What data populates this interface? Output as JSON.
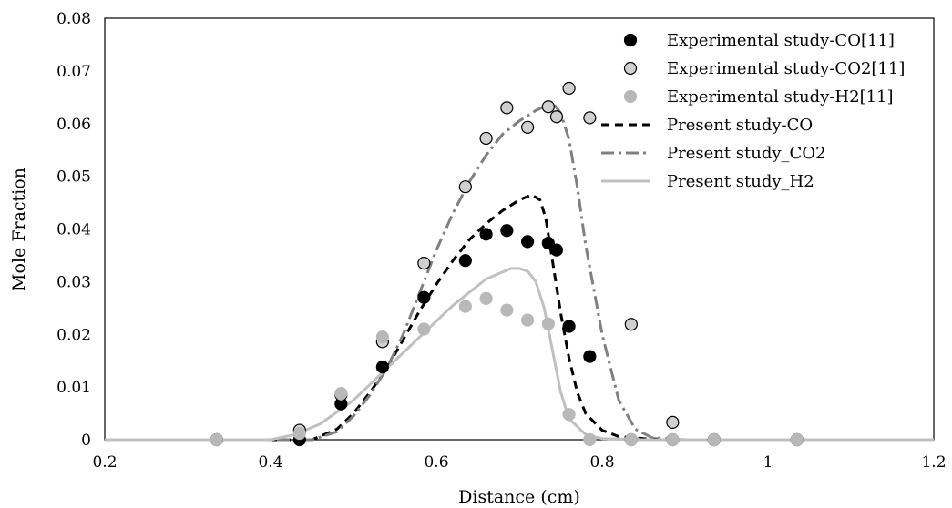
{
  "chart_data": {
    "type": "scatter",
    "xlabel": "Distance (cm)",
    "ylabel": "Mole Fraction",
    "xlim": [
      0.2,
      1.2
    ],
    "ylim": [
      0,
      0.08
    ],
    "xticks": [
      "0.2",
      "0.4",
      "0.6",
      "0.8",
      "1",
      "1.2"
    ],
    "yticks": [
      "0",
      "0.01",
      "0.02",
      "0.03",
      "0.04",
      "0.05",
      "0.06",
      "0.07",
      "0.08"
    ],
    "grid": false,
    "legend_position": "top-right",
    "series": [
      {
        "name": "Experimental study-CO[11]",
        "kind": "markers",
        "marker_fill": "#000000",
        "marker_stroke": "#000000",
        "x": [
          0.335,
          0.435,
          0.485,
          0.535,
          0.585,
          0.635,
          0.66,
          0.685,
          0.71,
          0.735,
          0.745,
          0.76,
          0.785,
          0.835,
          0.885,
          0.935,
          1.035
        ],
        "y": [
          0.0,
          0.0,
          0.0068,
          0.0138,
          0.027,
          0.034,
          0.039,
          0.0397,
          0.0376,
          0.0373,
          0.036,
          0.0215,
          0.0158,
          0.0,
          0.0,
          0.0,
          0.0
        ]
      },
      {
        "name": "Experimental study-CO2[11]",
        "kind": "markers",
        "marker_fill": "#d0d0d0",
        "marker_stroke": "#000000",
        "x": [
          0.335,
          0.435,
          0.485,
          0.535,
          0.585,
          0.635,
          0.66,
          0.685,
          0.71,
          0.735,
          0.745,
          0.76,
          0.785,
          0.835,
          0.885,
          0.935,
          1.035
        ],
        "y": [
          0.0,
          0.0018,
          0.0085,
          0.0186,
          0.0335,
          0.048,
          0.0572,
          0.063,
          0.0593,
          0.0632,
          0.0613,
          0.0667,
          0.0611,
          0.0219,
          0.0033,
          0.0,
          0.0
        ]
      },
      {
        "name": "Experimental study-H2[11]",
        "kind": "markers",
        "marker_fill": "#b8b8b8",
        "marker_stroke": "#b8b8b8",
        "x": [
          0.335,
          0.435,
          0.485,
          0.535,
          0.585,
          0.635,
          0.66,
          0.685,
          0.71,
          0.735,
          0.76,
          0.785,
          0.835,
          0.885,
          0.935,
          1.035
        ],
        "y": [
          0.0,
          0.0012,
          0.0088,
          0.0195,
          0.021,
          0.0253,
          0.0268,
          0.0246,
          0.0227,
          0.022,
          0.0048,
          0.0,
          0.0,
          0.0,
          0.0,
          0.0
        ]
      },
      {
        "name": "Present study-CO",
        "kind": "line",
        "color": "#000000",
        "dash": "9 6",
        "x": [
          0.2,
          0.45,
          0.48,
          0.5,
          0.52,
          0.54,
          0.56,
          0.58,
          0.6,
          0.62,
          0.64,
          0.66,
          0.68,
          0.7,
          0.715,
          0.725,
          0.732,
          0.74,
          0.75,
          0.76,
          0.77,
          0.78,
          0.8,
          0.82,
          0.85,
          0.9,
          1.2
        ],
        "y": [
          0.0,
          0.0,
          0.002,
          0.005,
          0.009,
          0.0135,
          0.019,
          0.0245,
          0.0295,
          0.034,
          0.038,
          0.041,
          0.0435,
          0.0455,
          0.0465,
          0.0455,
          0.042,
          0.034,
          0.024,
          0.0155,
          0.009,
          0.005,
          0.0018,
          0.0006,
          0.0002,
          0.0,
          0.0
        ]
      },
      {
        "name": "Present study_CO2",
        "kind": "line",
        "color": "#808080",
        "dash": "14 5 3 5",
        "x": [
          0.2,
          0.45,
          0.48,
          0.5,
          0.52,
          0.54,
          0.56,
          0.58,
          0.6,
          0.62,
          0.64,
          0.66,
          0.68,
          0.7,
          0.72,
          0.74,
          0.75,
          0.76,
          0.77,
          0.78,
          0.8,
          0.82,
          0.84,
          0.86,
          0.9,
          1.2
        ],
        "y": [
          0.0,
          0.0,
          0.0015,
          0.0045,
          0.0085,
          0.0135,
          0.02,
          0.028,
          0.036,
          0.043,
          0.049,
          0.054,
          0.058,
          0.0605,
          0.0625,
          0.064,
          0.062,
          0.057,
          0.048,
          0.037,
          0.02,
          0.0075,
          0.002,
          0.0004,
          0.0,
          0.0
        ]
      },
      {
        "name": "Present study_H2",
        "kind": "line",
        "color": "#c0c0c0",
        "dash": "",
        "x": [
          0.2,
          0.4,
          0.43,
          0.46,
          0.5,
          0.54,
          0.58,
          0.62,
          0.66,
          0.69,
          0.7,
          0.71,
          0.72,
          0.73,
          0.74,
          0.75,
          0.76,
          0.78,
          0.8,
          0.85,
          1.2
        ],
        "y": [
          0.0,
          0.0,
          0.001,
          0.003,
          0.0075,
          0.0135,
          0.0195,
          0.0255,
          0.0305,
          0.0325,
          0.0325,
          0.032,
          0.03,
          0.025,
          0.017,
          0.009,
          0.004,
          0.001,
          0.0002,
          0.0,
          0.0
        ]
      }
    ]
  }
}
